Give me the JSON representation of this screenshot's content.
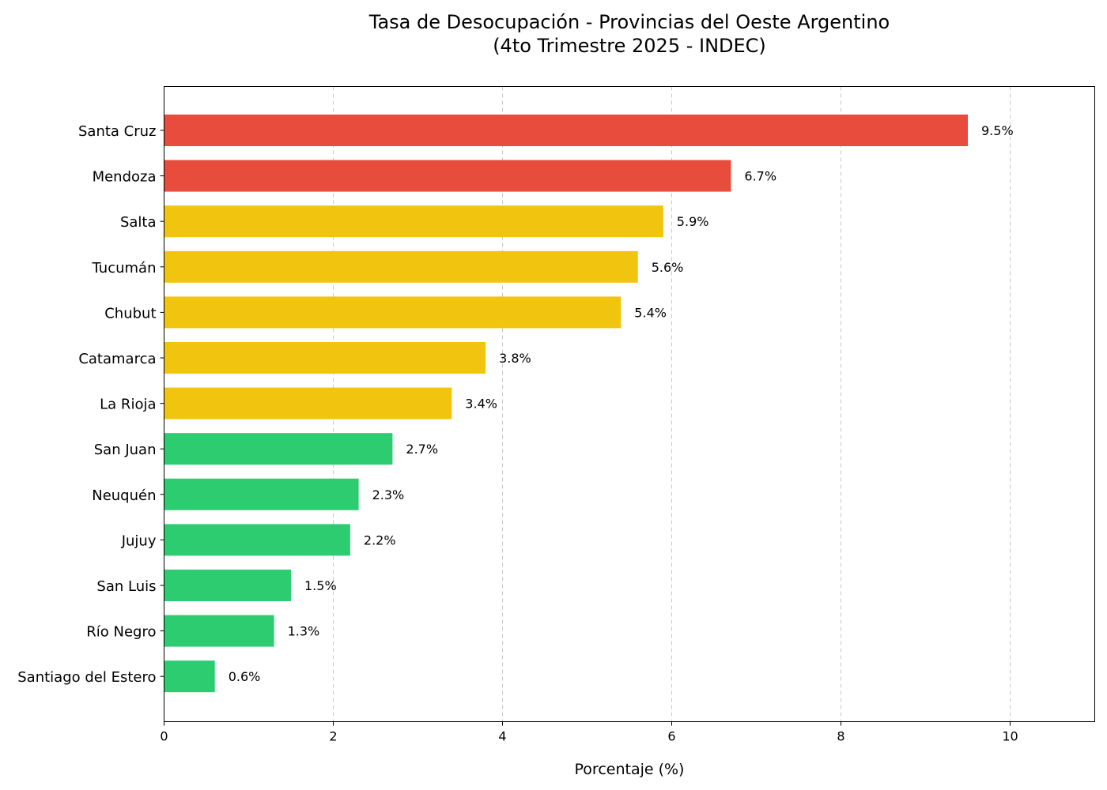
{
  "chart_data": {
    "type": "bar",
    "orientation": "horizontal",
    "title_line1": "Tasa de Desocupación - Provincias del Oeste Argentino",
    "title_line2": "(4to Trimestre 2025 - INDEC)",
    "xlabel": "Porcentaje (%)",
    "ylabel": "",
    "xlim": [
      0,
      11
    ],
    "xticks": [
      0,
      2,
      4,
      6,
      8,
      10
    ],
    "grid": "x-dashed",
    "categories": [
      "Santa Cruz",
      "Mendoza",
      "Salta",
      "Tucumán",
      "Chubut",
      "Catamarca",
      "La Rioja",
      "San Juan",
      "Neuquén",
      "Jujuy",
      "San Luis",
      "Río Negro",
      "Santiago del Estero"
    ],
    "values": [
      9.5,
      6.7,
      5.9,
      5.6,
      5.4,
      3.8,
      3.4,
      2.7,
      2.3,
      2.2,
      1.5,
      1.3,
      0.6
    ],
    "value_labels": [
      "9.5%",
      "6.7%",
      "5.9%",
      "5.6%",
      "5.4%",
      "3.8%",
      "3.4%",
      "2.7%",
      "2.3%",
      "2.2%",
      "1.5%",
      "1.3%",
      "0.6%"
    ],
    "colors": {
      "high": "#e74c3c",
      "medium": "#f1c40f",
      "low": "#2ecc71"
    },
    "bar_color_levels": [
      "high",
      "high",
      "medium",
      "medium",
      "medium",
      "medium",
      "medium",
      "low",
      "low",
      "low",
      "low",
      "low",
      "low"
    ]
  }
}
